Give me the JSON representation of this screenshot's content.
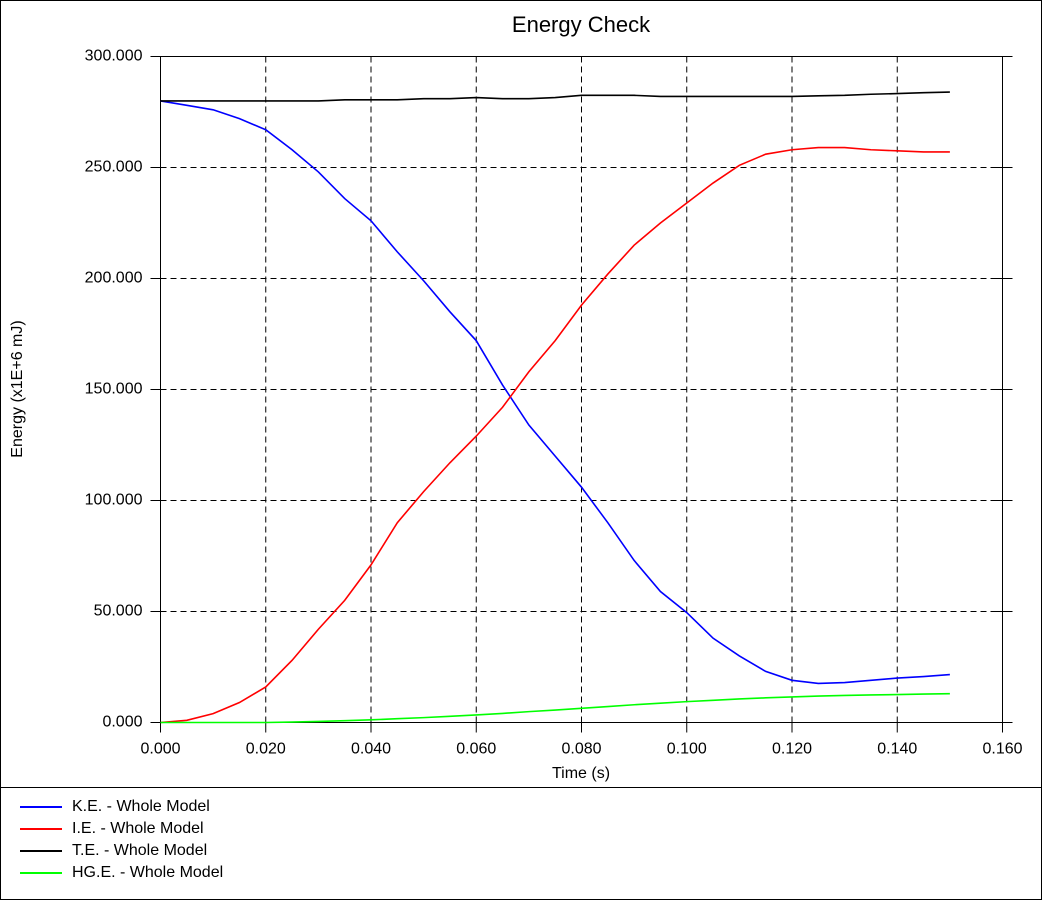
{
  "chart_data": {
    "type": "line",
    "title": "Energy Check",
    "xlabel": "Time (s)",
    "ylabel": "Energy (x1E+6 mJ)",
    "x": [
      0,
      0.005,
      0.01,
      0.015,
      0.02,
      0.025,
      0.03,
      0.035,
      0.04,
      0.045,
      0.05,
      0.055,
      0.06,
      0.065,
      0.07,
      0.075,
      0.08,
      0.085,
      0.09,
      0.095,
      0.1,
      0.105,
      0.11,
      0.115,
      0.12,
      0.125,
      0.13,
      0.135,
      0.14,
      0.145,
      0.15
    ],
    "series": [
      {
        "name": "K.E. - Whole Model",
        "color": "#0000ff",
        "values": [
          280,
          278,
          276,
          272,
          267,
          258,
          248,
          236,
          226,
          212,
          199,
          185,
          172,
          152,
          134,
          120,
          106,
          90,
          73,
          59,
          49.5,
          38,
          30,
          23,
          19,
          17.6,
          18,
          19,
          20,
          20.7,
          21.6
        ]
      },
      {
        "name": "I.E. - Whole Model",
        "color": "#ff0000",
        "values": [
          0,
          1,
          4,
          9,
          16,
          28,
          42,
          55,
          71,
          90,
          104,
          117,
          129,
          142,
          158,
          172,
          188,
          202,
          215,
          225,
          234,
          243,
          251,
          256,
          258,
          259,
          259,
          258,
          257.5,
          257,
          257
        ]
      },
      {
        "name": "T.E. - Whole Model",
        "color": "#000000",
        "values": [
          280,
          280,
          280,
          280,
          280,
          280,
          280,
          280.5,
          280.5,
          280.5,
          281,
          281,
          281.5,
          281,
          281,
          281.5,
          282.5,
          282.5,
          282.5,
          282,
          282,
          282,
          282,
          282,
          282,
          282.3,
          282.5,
          283,
          283.3,
          283.7,
          284
        ]
      },
      {
        "name": "HG.E. - Whole Model",
        "color": "#00ff00",
        "values": [
          0,
          0,
          0,
          0,
          0,
          0.2,
          0.5,
          0.8,
          1.2,
          1.7,
          2.2,
          2.8,
          3.4,
          4.1,
          4.9,
          5.6,
          6.4,
          7.2,
          8,
          8.7,
          9.4,
          10,
          10.6,
          11.1,
          11.5,
          11.9,
          12.2,
          12.4,
          12.6,
          12.8,
          13
        ]
      }
    ],
    "xlim": [
      0,
      0.16
    ],
    "xticks": [
      {
        "value": 0,
        "label": "0.000"
      },
      {
        "value": 0.02,
        "label": "0.020"
      },
      {
        "value": 0.04,
        "label": "0.040"
      },
      {
        "value": 0.06,
        "label": "0.060"
      },
      {
        "value": 0.08,
        "label": "0.080"
      },
      {
        "value": 0.1,
        "label": "0.100"
      },
      {
        "value": 0.12,
        "label": "0.120"
      },
      {
        "value": 0.14,
        "label": "0.140"
      },
      {
        "value": 0.16,
        "label": "0.160"
      }
    ],
    "ylim": [
      0,
      300
    ],
    "yticks": [
      {
        "value": 0,
        "label": "0.000"
      },
      {
        "value": 50,
        "label": "50.000"
      },
      {
        "value": 100,
        "label": "100.000"
      },
      {
        "value": 150,
        "label": "150.000"
      },
      {
        "value": 200,
        "label": "200.000"
      },
      {
        "value": 250,
        "label": "250.000"
      },
      {
        "value": 300,
        "label": "300.000"
      }
    ],
    "grid": true,
    "legend": "bottom"
  }
}
